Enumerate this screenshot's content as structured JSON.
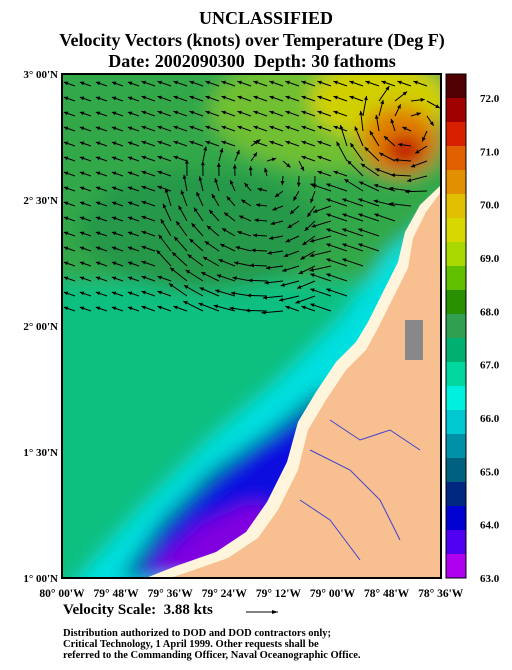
{
  "header": {
    "lines": [
      "UNCLASSIFIED",
      "Velocity Vectors (knots) over Temperature (Deg F)",
      "Date: 2002090300  Depth: 30 fathoms"
    ]
  },
  "axes": {
    "y_labels": [
      "3° 00'N",
      "2° 30'N",
      "2° 00'N",
      "1° 30'N",
      "1° 00'N"
    ],
    "x_labels": [
      "80° 00'W",
      "79° 48'W",
      "79° 36'W",
      "79° 24'W",
      "79° 12'W",
      "79° 00'W",
      "78° 48'W",
      "78° 36'W"
    ]
  },
  "colorbar": {
    "labels": [
      "72.0",
      "71.0",
      "70.0",
      "69.0",
      "68.0",
      "67.0",
      "66.0",
      "65.0",
      "64.0",
      "63.0"
    ],
    "colors": [
      "#500000",
      "#a00000",
      "#d82000",
      "#e06000",
      "#e09000",
      "#e0c000",
      "#d8d800",
      "#a8d800",
      "#60c000",
      "#289000",
      "#30a050",
      "#00b070",
      "#00d8a0",
      "#00f0e0",
      "#00c8d0",
      "#0090a8",
      "#006080",
      "#002880",
      "#0000d0",
      "#5000f0",
      "#b000f0"
    ]
  },
  "velocity_scale": {
    "label": "Velocity Scale:  3.88 kts"
  },
  "footer": {
    "lines": [
      "Distribution authorized to DOD and DOD contractors only;",
      "Critical Technology, 1 April 1999.  Other requests shall be",
      "referred to the Commanding Officer, Naval Oceanographic Office."
    ]
  }
}
